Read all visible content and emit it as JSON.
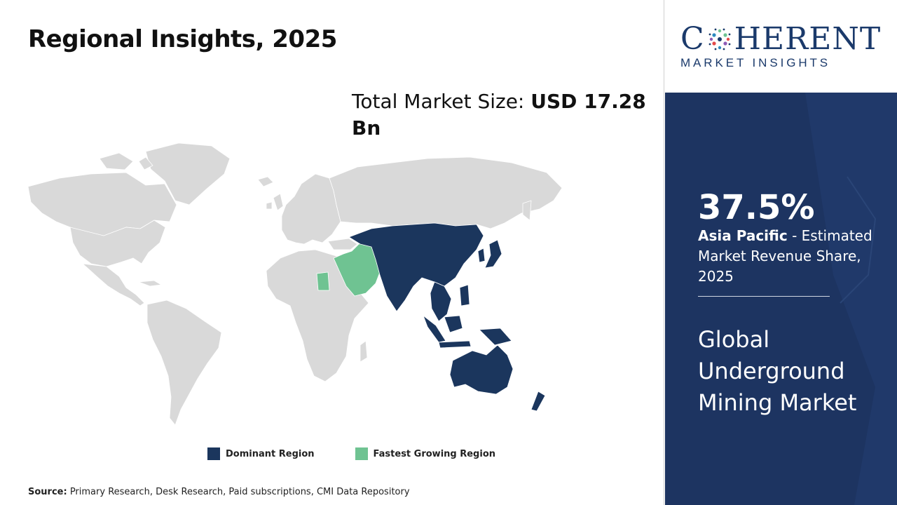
{
  "title": "Regional Insights, 2025",
  "market_size": {
    "label": "Total Market Size: ",
    "value": "USD 17.28 Bn"
  },
  "map": {
    "colors": {
      "dominant": "#1b365d",
      "fastest_growing": "#6fc392",
      "base": "#d9d9d9",
      "border": "#ffffff"
    },
    "dominant_region": "Asia Pacific",
    "fastest_growing_region": "Middle East"
  },
  "legend": {
    "dominant_label": "Dominant Region",
    "fastest_label": "Fastest Growing Region"
  },
  "source": {
    "label": "Source:",
    "text": " Primary Research, Desk Research, Paid subscriptions, CMI Data Repository"
  },
  "logo": {
    "left": "C",
    "right": "HERENT",
    "sub": "MARKET INSIGHTS",
    "color": "#1b3a6b"
  },
  "highlight": {
    "share": "37.5%",
    "region": "Asia Pacific",
    "desc": " - Estimated Market Revenue Share, 2025",
    "market_name": "Global Underground Mining Market"
  },
  "panel_color": "#1d3461"
}
